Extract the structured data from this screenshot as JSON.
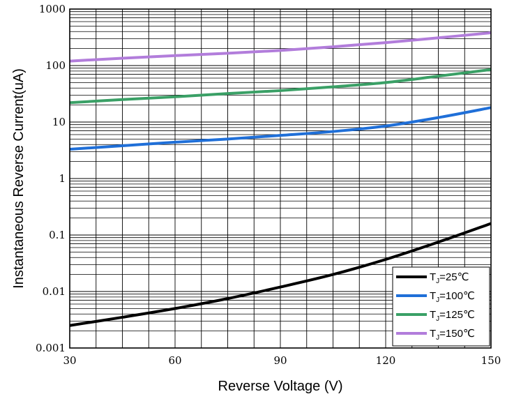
{
  "chart_data": {
    "type": "line",
    "title": "",
    "xlabel": "Reverse Voltage (V)",
    "ylabel": "Instantaneous Reverse Current(uA)",
    "xlim": [
      30,
      150
    ],
    "ylim": [
      0.001,
      1000
    ],
    "yscale": "log",
    "grid": true,
    "legend_position": "bottom-right",
    "x_ticks": [
      30,
      60,
      90,
      120,
      150
    ],
    "x_tick_labels": [
      "30",
      "60",
      "90",
      "120",
      "150"
    ],
    "y_ticks": [
      0.001,
      0.01,
      0.1,
      1,
      10,
      100,
      1000
    ],
    "y_tick_labels": [
      "0.001",
      "0.01",
      "0.1",
      "1",
      "10",
      "100",
      "1000"
    ],
    "x": [
      30,
      45,
      60,
      75,
      90,
      105,
      120,
      135,
      150
    ],
    "series": [
      {
        "name": "TJ=25℃",
        "label_main": "T",
        "label_sub": "J",
        "label_tail": "=25℃",
        "color": "#000000",
        "values": [
          0.0025,
          0.0035,
          0.005,
          0.0075,
          0.012,
          0.02,
          0.037,
          0.075,
          0.16
        ]
      },
      {
        "name": "TJ=100℃",
        "label_main": "T",
        "label_sub": "J",
        "label_tail": "=100℃",
        "color": "#1f6fd8",
        "values": [
          3.3,
          3.8,
          4.4,
          5.0,
          5.8,
          6.8,
          8.5,
          12,
          18
        ]
      },
      {
        "name": "TJ=125℃",
        "label_main": "T",
        "label_sub": "J",
        "label_tail": "=125℃",
        "color": "#3aa066",
        "values": [
          22,
          25,
          28,
          32,
          36,
          42,
          50,
          65,
          85
        ]
      },
      {
        "name": "TJ=150℃",
        "label_main": "T",
        "label_sub": "J",
        "label_tail": "=150℃",
        "color": "#b27ddb",
        "values": [
          120,
          135,
          150,
          165,
          185,
          215,
          255,
          310,
          380
        ]
      }
    ]
  }
}
